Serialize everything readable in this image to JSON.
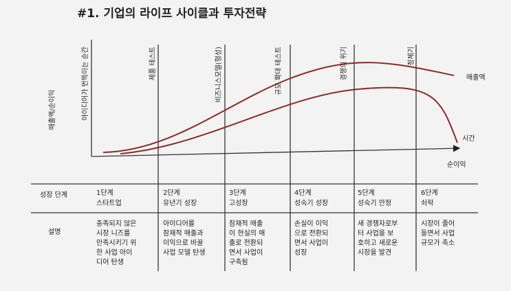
{
  "header": {
    "title": "#1. 기업의 라이프 사이클과 투자전략"
  },
  "diagram": {
    "y_axis_label": "매출액/순이익",
    "milestones": [
      "아이디어가 번뜩이는 순간",
      "제품 테스트",
      "비즈니스모델(형성)",
      "규모 확대 테스트",
      "경쟁의 위기",
      "정체기"
    ],
    "sales_label": "매출액",
    "time_label": "시간",
    "profit_label": "순이익"
  },
  "table": {
    "row_labels": [
      "성장 단계",
      "설명"
    ],
    "stages": [
      {
        "step": "1단계",
        "name": "스타트업",
        "description": [
          "충족되지 않은",
          "시장 니즈를",
          "만족시키기 위",
          "한 사업 아이",
          "디어 탄생"
        ]
      },
      {
        "step": "2단계",
        "name": "유년기 성장",
        "description": [
          "아이디어를",
          "잠재적 매출과",
          "이익으로 바꿀",
          "사업 모델 탄생"
        ]
      },
      {
        "step": "3단계",
        "name": "고성장",
        "description": [
          "잠재적 매출",
          "이 현실의 매",
          "출로 전환되",
          "면서 사업이",
          "구축됨"
        ]
      },
      {
        "step": "4단계",
        "name": "성숙기 성장",
        "description": [
          "손실이 이익",
          "으로 전환되",
          "면서 사업이",
          "성장"
        ]
      },
      {
        "step": "5단계",
        "name": "성숙기 안정",
        "description": [
          "새 경쟁자로부",
          "터 사업을 보",
          "호하고 새로운",
          "시장을 발견"
        ]
      },
      {
        "step": "6단계",
        "name": "쇠락",
        "description": [
          "시장이 줄어",
          "들면서 사업",
          "규모가 축소"
        ]
      }
    ]
  }
}
